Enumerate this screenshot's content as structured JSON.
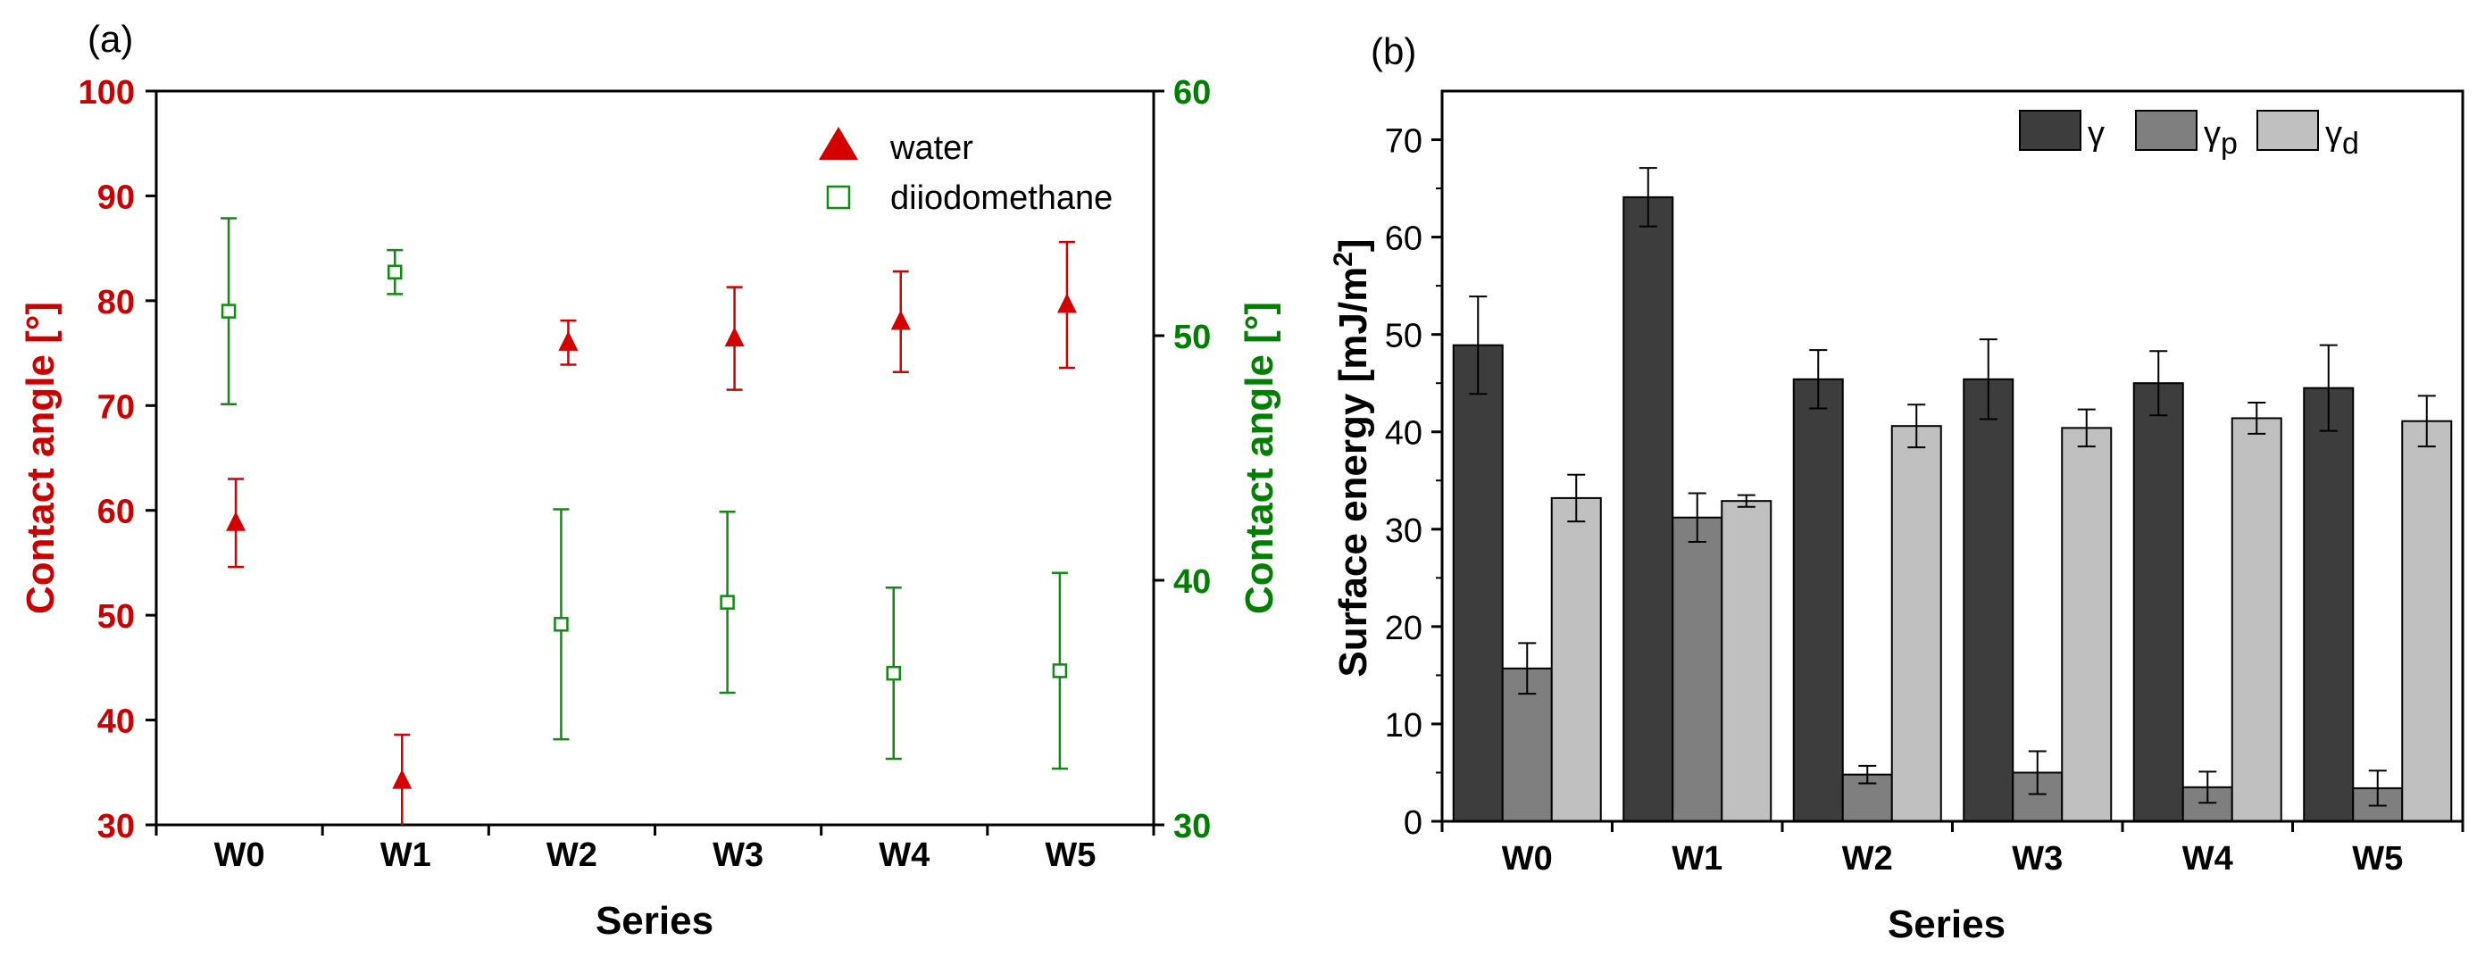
{
  "chart_data": [
    {
      "panel_label": "(a)",
      "type": "scatter",
      "xlabel": "Series",
      "ylabel_left": "Contact angle [°]",
      "ylabel_right": "Contact angle [°]",
      "categories": [
        "W0",
        "W1",
        "W2",
        "W3",
        "W4",
        "W5"
      ],
      "ylim_left": [
        30,
        100
      ],
      "ylim_right": [
        30,
        60
      ],
      "yticks_left": [
        "30",
        "40",
        "50",
        "60",
        "70",
        "80",
        "90",
        "100"
      ],
      "yticks_right": [
        "30",
        "40",
        "50",
        "60"
      ],
      "left_axis_color": "#cc0000",
      "right_axis_color": "#008000",
      "legend_position": "top-right",
      "series": [
        {
          "name": "water",
          "axis": "left",
          "marker": "filled-triangle",
          "color": "#d40000",
          "values": [
            58.8,
            34.2,
            76.0,
            76.4,
            78.0,
            79.6
          ],
          "errors": [
            4.2,
            4.4,
            2.1,
            4.9,
            4.8,
            6.0
          ]
        },
        {
          "name": "diiodomethane",
          "axis": "right",
          "marker": "open-square",
          "color": "#108a10",
          "values": [
            51.0,
            52.6,
            38.2,
            39.1,
            36.2,
            36.3
          ],
          "errors": [
            3.8,
            0.9,
            4.7,
            3.7,
            3.5,
            4.0
          ]
        }
      ]
    },
    {
      "panel_label": "(b)",
      "type": "bar",
      "xlabel": "Series",
      "ylabel": "Surface energy [mJ/m",
      "ylabel_sup": "2",
      "ylabel_close": "]",
      "categories": [
        "W0",
        "W1",
        "W2",
        "W3",
        "W4",
        "W5"
      ],
      "ylim": [
        0,
        75
      ],
      "yticks": [
        "0",
        "10",
        "20",
        "30",
        "40",
        "50",
        "60",
        "70"
      ],
      "legend_position": "top-right",
      "series": [
        {
          "name": "γ",
          "symbol": "γ",
          "sub": "",
          "color": "#3d3d3d",
          "values": [
            48.9,
            64.1,
            45.4,
            45.4,
            45.0,
            44.5
          ],
          "errors": [
            5.0,
            3.0,
            3.0,
            4.1,
            3.3,
            4.4
          ]
        },
        {
          "name": "γp",
          "symbol": "γ",
          "sub": "p",
          "color": "#7f7f7f",
          "values": [
            15.7,
            31.2,
            4.8,
            5.0,
            3.5,
            3.4
          ],
          "errors": [
            2.6,
            2.5,
            0.9,
            2.2,
            1.6,
            1.8
          ]
        },
        {
          "name": "γd",
          "symbol": "γ",
          "sub": "d",
          "color": "#c0c0c0",
          "values": [
            33.2,
            32.9,
            40.6,
            40.4,
            41.4,
            41.1
          ],
          "errors": [
            2.4,
            0.6,
            2.2,
            1.9,
            1.6,
            2.6
          ]
        }
      ]
    }
  ]
}
